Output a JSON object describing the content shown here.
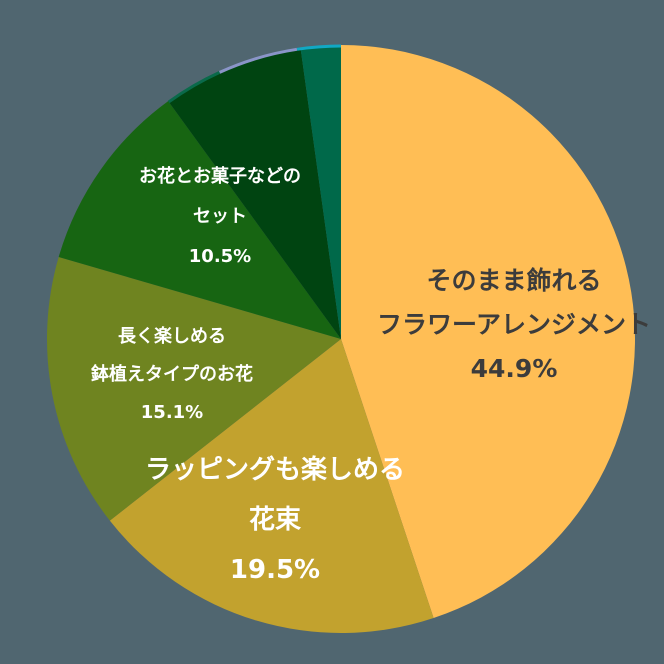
{
  "chart_data": {
    "type": "pie",
    "title": "",
    "start_angle_deg": 0,
    "direction": "clockwise",
    "slices": [
      {
        "label_line1": "そのまま飾れる",
        "label_line2": "フラワーアレンジメント",
        "label": "そのまま飾れるフラワーアレンジメント",
        "value": 44.9,
        "value_text": "44.9%",
        "color": "#ffbe55"
      },
      {
        "label_line1": "ラッピングも楽しめる",
        "label_line2": "花束",
        "label": "ラッピングも楽しめる花束",
        "value": 19.5,
        "value_text": "19.5%",
        "color": "#c2a22e"
      },
      {
        "label_line1": "長く楽しめる",
        "label_line2": "鉢植えタイプのお花",
        "label": "長く楽しめる鉢植えタイプのお花",
        "value": 15.1,
        "value_text": "15.1%",
        "color": "#6f8420"
      },
      {
        "label_line1": "お花とお菓子などの",
        "label_line2": "セット",
        "label": "お花とお菓子などのセット",
        "value": 10.5,
        "value_text": "10.5%",
        "color": "#176512"
      },
      {
        "label": "",
        "value": 7.8,
        "value_text": "",
        "color": "#004411"
      },
      {
        "label": "",
        "value": 2.2,
        "value_text": "",
        "color": "#00694a"
      }
    ],
    "edge_slivers": [
      {
        "from_pct": 90.0,
        "to_pct": 93.2,
        "color": "#0a6a4a"
      },
      {
        "from_pct": 93.2,
        "to_pct": 97.6,
        "color": "#8a95c8"
      },
      {
        "from_pct": 97.6,
        "to_pct": 100.0,
        "color": "#11a8c4"
      }
    ],
    "background": "#506670",
    "legend": "none"
  }
}
